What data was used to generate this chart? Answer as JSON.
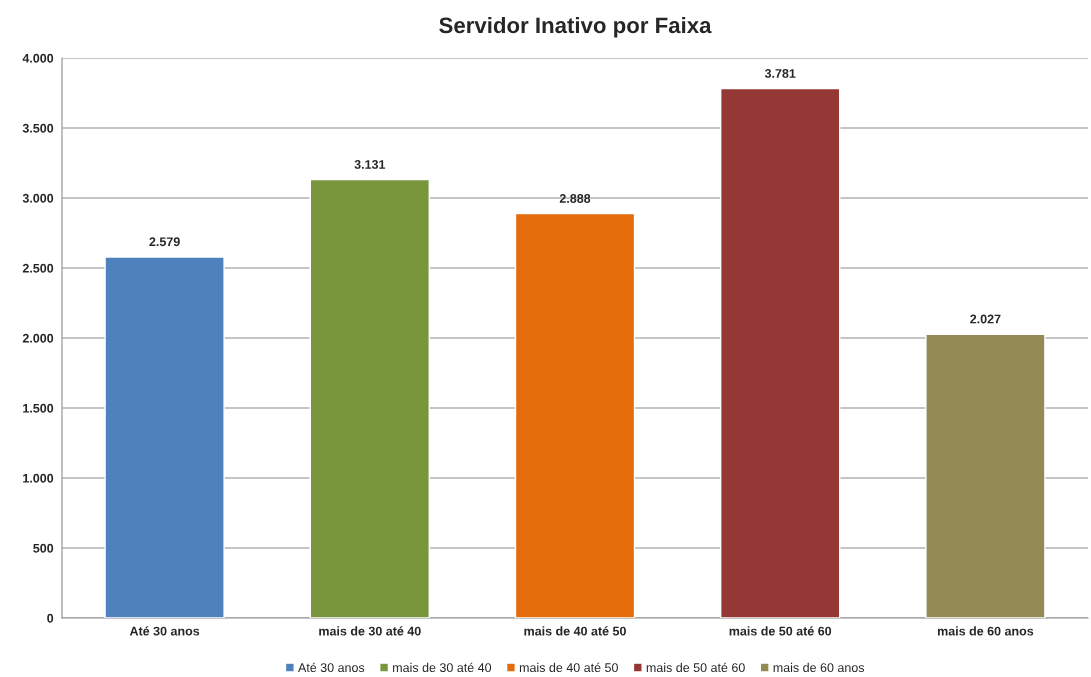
{
  "chart_data": {
    "type": "bar",
    "title": "Servidor Inativo por Faixa",
    "categories": [
      "Até 30 anos",
      "mais de 30 até 40",
      "mais de 40 até 50",
      "mais de 50 até 60",
      "mais de 60 anos"
    ],
    "series": [
      {
        "name": "Até 30 anos",
        "color": "#4f81bd",
        "values": [
          2579,
          null,
          null,
          null,
          null
        ],
        "value_labels": [
          "2.579",
          null,
          null,
          null,
          null
        ]
      },
      {
        "name": "mais de 30 até 40",
        "color": "#7a963c",
        "values": [
          null,
          3131,
          null,
          null,
          null
        ],
        "value_labels": [
          null,
          "3.131",
          null,
          null,
          null
        ]
      },
      {
        "name": "mais de 40 até 50",
        "color": "#e46c0a",
        "values": [
          null,
          null,
          2888,
          null,
          null
        ],
        "value_labels": [
          null,
          null,
          "2.888",
          null,
          null
        ]
      },
      {
        "name": "mais de 50 até 60",
        "color": "#953735",
        "values": [
          null,
          null,
          null,
          3781,
          null
        ],
        "value_labels": [
          null,
          null,
          null,
          "3.781",
          null
        ]
      },
      {
        "name": "mais de 60 anos",
        "color": "#948a54",
        "values": [
          null,
          null,
          null,
          null,
          2027
        ],
        "value_labels": [
          null,
          null,
          null,
          null,
          "2.027"
        ]
      }
    ],
    "ylim": [
      0,
      4000
    ],
    "yticks": [
      {
        "value": 0,
        "label": "0"
      },
      {
        "value": 500,
        "label": "500"
      },
      {
        "value": 1000,
        "label": "1.000"
      },
      {
        "value": 1500,
        "label": "1.500"
      },
      {
        "value": 2000,
        "label": "2.000"
      },
      {
        "value": 2500,
        "label": "2.500"
      },
      {
        "value": 3000,
        "label": "3.000"
      },
      {
        "value": 3500,
        "label": "3.500"
      },
      {
        "value": 4000,
        "label": "4.000"
      }
    ],
    "grid": "y",
    "legend": "bottom"
  }
}
